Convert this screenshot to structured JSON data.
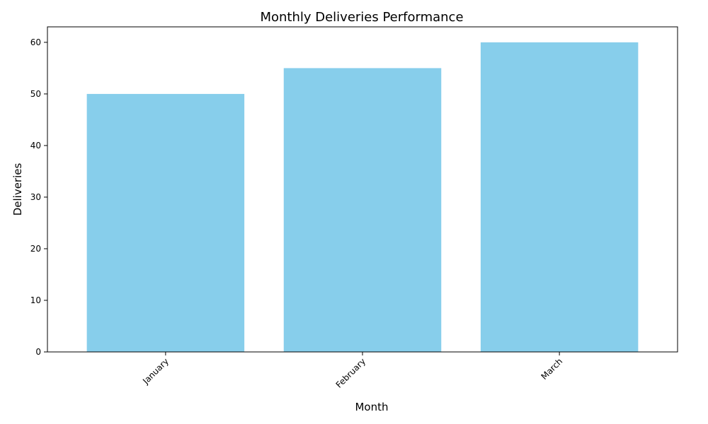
{
  "chart_data": {
    "type": "bar",
    "title": "Monthly Deliveries Performance",
    "xlabel": "Month",
    "ylabel": "Deliveries",
    "categories": [
      "January",
      "February",
      "March"
    ],
    "values": [
      50,
      55,
      60
    ],
    "ylim": [
      0,
      63
    ],
    "yticks": [
      0,
      10,
      20,
      30,
      40,
      50,
      60
    ],
    "bar_color": "#87ceeb",
    "grid": false,
    "legend": "none"
  }
}
